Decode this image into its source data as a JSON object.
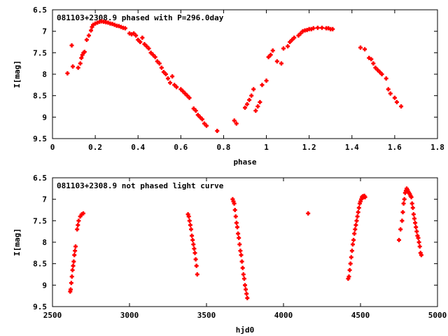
{
  "chart_data": [
    {
      "type": "scatter",
      "title": "081103+2308.9 phased with P=296.0day",
      "xlabel": "phase",
      "ylabel": "I[mag]",
      "xlim": [
        0,
        1.8
      ],
      "ylim": [
        6.5,
        9.5
      ],
      "y_inverted": true,
      "xticks": [
        "0",
        "0.2",
        "0.4",
        "0.6",
        "0.8",
        "1",
        "1.2",
        "1.4",
        "1.6",
        "1.8"
      ],
      "yticks": [
        "6.5",
        "7",
        "7.5",
        "8",
        "8.5",
        "9",
        "9.5"
      ],
      "marker": "plus",
      "color": "#ff0000",
      "x": [
        0.07,
        0.09,
        0.095,
        0.12,
        0.13,
        0.135,
        0.14,
        0.145,
        0.15,
        0.16,
        0.17,
        0.18,
        0.185,
        0.19,
        0.2,
        0.21,
        0.22,
        0.23,
        0.24,
        0.25,
        0.26,
        0.27,
        0.28,
        0.29,
        0.3,
        0.31,
        0.32,
        0.33,
        0.34,
        0.36,
        0.37,
        0.38,
        0.39,
        0.4,
        0.41,
        0.42,
        0.43,
        0.44,
        0.45,
        0.46,
        0.47,
        0.48,
        0.49,
        0.5,
        0.51,
        0.52,
        0.53,
        0.54,
        0.55,
        0.56,
        0.57,
        0.58,
        0.6,
        0.61,
        0.62,
        0.63,
        0.64,
        0.66,
        0.67,
        0.68,
        0.69,
        0.7,
        0.71,
        0.72,
        0.77,
        0.85,
        0.86,
        0.9,
        0.91,
        0.92,
        0.93,
        0.94,
        0.95,
        0.96,
        0.97,
        0.98,
        1.0,
        1.01,
        1.02,
        1.03,
        1.05,
        1.07,
        1.08,
        1.1,
        1.11,
        1.12,
        1.13,
        1.15,
        1.16,
        1.17,
        1.18,
        1.19,
        1.2,
        1.21,
        1.22,
        1.24,
        1.26,
        1.28,
        1.29,
        1.3,
        1.31,
        1.44,
        1.46,
        1.48,
        1.49,
        1.5,
        1.51,
        1.52,
        1.53,
        1.54,
        1.56,
        1.57,
        1.58,
        1.6,
        1.61,
        1.63
      ],
      "y": [
        7.98,
        7.33,
        7.82,
        7.85,
        7.75,
        7.62,
        7.55,
        7.5,
        7.48,
        7.2,
        7.1,
        6.98,
        6.9,
        6.85,
        6.82,
        6.8,
        6.78,
        6.77,
        6.78,
        6.79,
        6.8,
        6.82,
        6.83,
        6.85,
        6.87,
        6.88,
        6.9,
        6.92,
        6.93,
        7.05,
        7.07,
        7.05,
        7.1,
        7.2,
        7.25,
        7.15,
        7.3,
        7.35,
        7.4,
        7.5,
        7.55,
        7.6,
        7.7,
        7.75,
        7.85,
        7.95,
        8.0,
        8.1,
        8.2,
        8.05,
        8.25,
        8.3,
        8.35,
        8.4,
        8.45,
        8.5,
        8.55,
        8.8,
        8.85,
        8.95,
        9.0,
        9.05,
        9.15,
        9.2,
        9.32,
        9.08,
        9.15,
        8.78,
        8.7,
        8.6,
        8.5,
        8.35,
        8.85,
        8.75,
        8.65,
        8.25,
        8.15,
        7.6,
        7.55,
        7.45,
        7.7,
        7.75,
        7.4,
        7.35,
        7.25,
        7.2,
        7.15,
        7.1,
        7.05,
        7.0,
        6.98,
        6.97,
        6.95,
        6.95,
        6.93,
        6.92,
        6.92,
        6.93,
        6.93,
        6.95,
        6.95,
        7.38,
        7.42,
        7.62,
        7.65,
        7.75,
        7.85,
        7.9,
        7.95,
        8.0,
        8.1,
        8.35,
        8.45,
        8.55,
        8.65,
        8.75
      ]
    },
    {
      "type": "scatter",
      "title": "081103+2308.9 not phased light curve",
      "xlabel": "hjd0",
      "ylabel": "I[mag]",
      "xlim": [
        2500,
        5000
      ],
      "ylim": [
        6.5,
        9.5
      ],
      "y_inverted": true,
      "xticks": [
        "2500",
        "3000",
        "3500",
        "4000",
        "4500",
        "5000"
      ],
      "yticks": [
        "6.5",
        "7",
        "7.5",
        "8",
        "8.5",
        "9",
        "9.5"
      ],
      "marker": "plus",
      "color": "#ff0000",
      "x": [
        2615,
        2618,
        2622,
        2626,
        2630,
        2634,
        2638,
        2642,
        2646,
        2650,
        2660,
        2665,
        2670,
        2680,
        2690,
        2700,
        3380,
        3385,
        3390,
        3395,
        3400,
        3405,
        3410,
        3415,
        3420,
        3425,
        3430,
        3435,
        3440,
        3670,
        3675,
        3680,
        3685,
        3690,
        3695,
        3700,
        3705,
        3710,
        3715,
        3720,
        3725,
        3730,
        3735,
        3740,
        3745,
        3750,
        3755,
        3760,
        3765,
        4160,
        4420,
        4425,
        4430,
        4435,
        4440,
        4445,
        4450,
        4455,
        4460,
        4465,
        4470,
        4475,
        4480,
        4485,
        4490,
        4495,
        4500,
        4505,
        4510,
        4515,
        4520,
        4525,
        4530,
        4750,
        4760,
        4770,
        4775,
        4780,
        4785,
        4790,
        4795,
        4800,
        4805,
        4810,
        4815,
        4820,
        4825,
        4830,
        4835,
        4840,
        4845,
        4850,
        4855,
        4860,
        4865,
        4870,
        4875,
        4880,
        4885,
        4890,
        4895
      ],
      "y": [
        9.15,
        9.1,
        8.95,
        8.8,
        8.65,
        8.55,
        8.45,
        8.3,
        8.2,
        8.1,
        7.7,
        7.6,
        7.5,
        7.4,
        7.35,
        7.33,
        7.35,
        7.4,
        7.5,
        7.6,
        7.7,
        7.85,
        7.95,
        8.05,
        8.15,
        8.25,
        8.4,
        8.55,
        8.75,
        7.0,
        7.05,
        7.1,
        7.25,
        7.4,
        7.55,
        7.65,
        7.8,
        7.9,
        8.05,
        8.2,
        8.3,
        8.45,
        8.6,
        8.75,
        8.85,
        9.0,
        9.1,
        9.2,
        9.3,
        7.33,
        8.85,
        8.8,
        8.65,
        8.5,
        8.35,
        8.2,
        8.05,
        7.95,
        7.8,
        7.7,
        7.6,
        7.5,
        7.4,
        7.3,
        7.2,
        7.1,
        7.05,
        7.0,
        6.95,
        6.93,
        6.95,
        6.92,
        6.95,
        7.95,
        7.7,
        7.5,
        7.3,
        7.1,
        7.0,
        6.85,
        6.8,
        6.75,
        6.78,
        6.82,
        6.85,
        6.88,
        6.92,
        6.95,
        7.1,
        7.2,
        7.35,
        7.45,
        7.55,
        7.65,
        7.75,
        7.85,
        7.9,
        8.0,
        8.1,
        8.25,
        8.3
      ]
    }
  ]
}
